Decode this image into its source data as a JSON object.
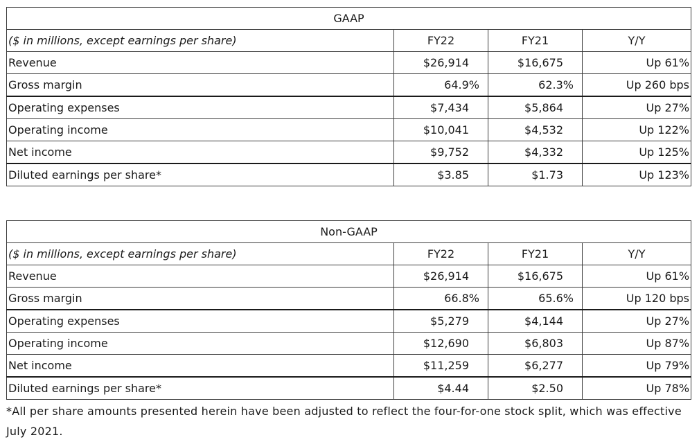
{
  "gaap": {
    "title": "GAAP",
    "header": {
      "units": "($ in millions, except earnings per share)",
      "col1": "FY22",
      "col2": "FY21",
      "col3": "Y/Y"
    },
    "rows": [
      {
        "label": "Revenue",
        "fy22": "$26,914",
        "fy21": "$16,675",
        "yy": "Up 61%"
      },
      {
        "label": "Gross margin",
        "fy22": "64.9%",
        "fy21": "62.3%",
        "yy": "Up 260 bps"
      },
      {
        "label": "Operating expenses",
        "fy22": "$7,434",
        "fy21": "$5,864",
        "yy": "Up 27%"
      },
      {
        "label": "Operating income",
        "fy22": "$10,041",
        "fy21": "$4,532",
        "yy": "Up 122%"
      },
      {
        "label": "Net income",
        "fy22": "$9,752",
        "fy21": "$4,332",
        "yy": "Up 125%"
      },
      {
        "label": "Diluted earnings per share*",
        "fy22": "$3.85",
        "fy21": "$1.73",
        "yy": "Up 123%"
      }
    ]
  },
  "nongaap": {
    "title": "Non-GAAP",
    "header": {
      "units": "($ in millions, except earnings per share)",
      "col1": "FY22",
      "col2": "FY21",
      "col3": "Y/Y"
    },
    "rows": [
      {
        "label": "Revenue",
        "fy22": "$26,914",
        "fy21": "$16,675",
        "yy": "Up 61%"
      },
      {
        "label": "Gross margin",
        "fy22": "66.8%",
        "fy21": "65.6%",
        "yy": "Up 120 bps"
      },
      {
        "label": "Operating expenses",
        "fy22": "$5,279",
        "fy21": "$4,144",
        "yy": "Up 27%"
      },
      {
        "label": "Operating income",
        "fy22": "$12,690",
        "fy21": "$6,803",
        "yy": "Up 87%"
      },
      {
        "label": "Net income",
        "fy22": "$11,259",
        "fy21": "$6,277",
        "yy": "Up 79%"
      },
      {
        "label": "Diluted earnings per share*",
        "fy22": "$4.44",
        "fy21": "$2.50",
        "yy": "Up 78%"
      }
    ]
  },
  "footnote": "*All per share amounts presented herein have been adjusted to reflect the four-for-one stock split, which was effective July 2021."
}
